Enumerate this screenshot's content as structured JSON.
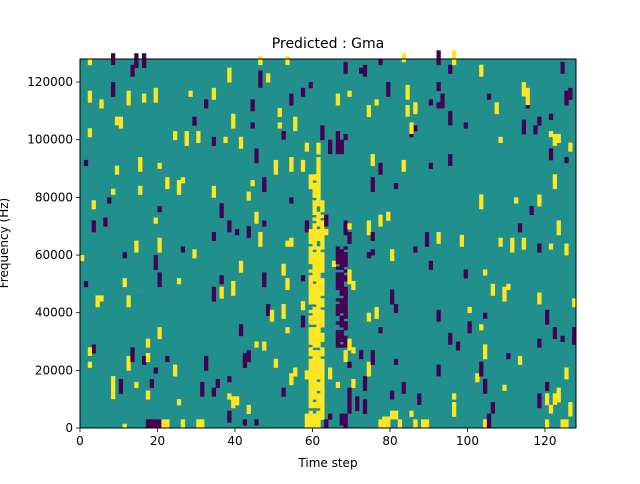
{
  "chart_data": {
    "type": "heatmap",
    "title": "Predicted : Gma",
    "xlabel": "Time step",
    "ylabel": "Frequency (Hz)",
    "xlim": [
      0,
      128
    ],
    "ylim": [
      0,
      128000
    ],
    "x_ticks": [
      0,
      20,
      40,
      60,
      80,
      100,
      120
    ],
    "x_tick_labels": [
      "0",
      "20",
      "40",
      "60",
      "80",
      "100",
      "120"
    ],
    "y_ticks": [
      0,
      20000,
      40000,
      60000,
      80000,
      100000,
      120000
    ],
    "y_tick_labels": [
      "0",
      "20000",
      "40000",
      "60000",
      "80000",
      "100000",
      "120000"
    ],
    "grid": false,
    "colormap": "viridis",
    "background_value": 0,
    "colors": {
      "background": "#21908d",
      "low": "#440154",
      "high": "#fde725"
    },
    "columns": 128,
    "rows": 128,
    "row_height_hz": 1000,
    "cells": [
      {
        "t": 1,
        "f0": 0,
        "f1": 10000,
        "v": 0
      },
      {
        "t": 2,
        "f0": 25000,
        "f1": 28000,
        "v": 1
      },
      {
        "t": 6,
        "f0": 0,
        "f1": 4000,
        "v": 0
      },
      {
        "t": 7,
        "f0": 4000,
        "f1": 9000,
        "v": 0
      },
      {
        "t": 8,
        "f0": 10000,
        "f1": 18000,
        "v": 1
      },
      {
        "t": 9,
        "f0": 105000,
        "f1": 108000,
        "v": 1
      },
      {
        "t": 11,
        "f0": 0,
        "f1": 1500,
        "v": 1
      },
      {
        "t": 15,
        "f0": 42000,
        "f1": 46000,
        "v": 0
      },
      {
        "t": 17,
        "f0": 0,
        "f1": 3000,
        "v": -1
      },
      {
        "t": 18,
        "f0": 0,
        "f1": 3000,
        "v": -1
      },
      {
        "t": 19,
        "f0": 0,
        "f1": 3000,
        "v": -1
      },
      {
        "t": 20,
        "f0": 0,
        "f1": 3000,
        "v": -1
      },
      {
        "t": 21,
        "f0": 0,
        "f1": 3000,
        "v": 1
      },
      {
        "t": 22,
        "f0": 0,
        "f1": 3000,
        "v": 1
      },
      {
        "t": 26,
        "f0": 0,
        "f1": 3000,
        "v": 1
      },
      {
        "t": 30,
        "f0": 0,
        "f1": 3000,
        "v": 1
      },
      {
        "t": 31,
        "f0": 0,
        "f1": 3000,
        "v": 1
      },
      {
        "t": 46,
        "f0": 118000,
        "f1": 124000,
        "v": -1
      },
      {
        "t": 52,
        "f0": 100000,
        "f1": 103000,
        "v": -1
      },
      {
        "t": 55,
        "f0": 103000,
        "f1": 108000,
        "v": 1
      },
      {
        "t": 58,
        "f0": 0,
        "f1": 5000,
        "v": 1
      },
      {
        "t": 59,
        "f0": 0,
        "f1": 5000,
        "v": 1
      },
      {
        "t": 60,
        "f0": 0,
        "f1": 3000,
        "v": 1
      },
      {
        "t": 61,
        "f0": 0,
        "f1": 3000,
        "v": 1
      },
      {
        "t": 64,
        "f0": 95000,
        "f1": 100000,
        "v": -1
      },
      {
        "t": 66,
        "f0": 95000,
        "f1": 103000,
        "v": -1
      },
      {
        "t": 67,
        "f0": 95000,
        "f1": 100000,
        "v": -1
      },
      {
        "t": 68,
        "f0": 0,
        "f1": 5000,
        "v": -1
      },
      {
        "t": 69,
        "f0": 5000,
        "f1": 14000,
        "v": -1
      },
      {
        "t": 77,
        "f0": 0,
        "f1": 3000,
        "v": 1
      },
      {
        "t": 78,
        "f0": 0,
        "f1": 4000,
        "v": 1
      },
      {
        "t": 79,
        "f0": 0,
        "f1": 4000,
        "v": 1
      },
      {
        "t": 80,
        "f0": 3000,
        "f1": 6000,
        "v": 1
      },
      {
        "t": 81,
        "f0": 3000,
        "f1": 6000,
        "v": 1
      },
      {
        "t": 82,
        "f0": 0,
        "f1": 3000,
        "v": 1
      },
      {
        "t": 84,
        "f0": 108000,
        "f1": 112000,
        "v": 1
      },
      {
        "t": 85,
        "f0": 102000,
        "f1": 106000,
        "v": 1
      },
      {
        "t": 86,
        "f0": 0,
        "f1": 3000,
        "v": 1
      },
      {
        "t": 87,
        "f0": 8000,
        "f1": 12000,
        "v": -1
      },
      {
        "t": 88,
        "f0": 0,
        "f1": 3000,
        "v": 1
      },
      {
        "t": 89,
        "f0": 0,
        "f1": 3000,
        "v": 1
      },
      {
        "t": 95,
        "f0": 105000,
        "f1": 110000,
        "v": -1
      },
      {
        "t": 104,
        "f0": 0,
        "f1": 3000,
        "v": 1
      },
      {
        "t": 105,
        "f0": 0,
        "f1": 5000,
        "v": -1
      },
      {
        "t": 106,
        "f0": 5000,
        "f1": 9000,
        "v": -1
      },
      {
        "t": 114,
        "f0": 115000,
        "f1": 120000,
        "v": 1
      },
      {
        "t": 115,
        "f0": 112000,
        "f1": 118000,
        "v": 1
      },
      {
        "t": 120,
        "f0": 0,
        "f1": 3000,
        "v": 1
      },
      {
        "t": 121,
        "f0": 5000,
        "f1": 8000,
        "v": 1
      },
      {
        "t": 122,
        "f0": 8000,
        "f1": 12000,
        "v": 1
      },
      {
        "t": 124,
        "f0": 0,
        "f1": 3000,
        "v": 1
      },
      {
        "t": 125,
        "f0": 0,
        "f1": 3000,
        "v": 1
      },
      {
        "t": 126,
        "f0": 4000,
        "f1": 9000,
        "v": 1
      },
      {
        "t": 127,
        "f0": 30000,
        "f1": 35000,
        "v": -1
      }
    ]
  }
}
